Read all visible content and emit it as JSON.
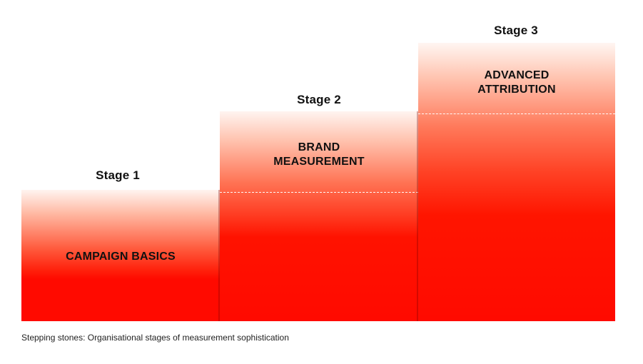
{
  "stages": [
    {
      "label": "Stage 1",
      "title_lines": [
        "CAMPAIGN BASICS"
      ]
    },
    {
      "label": "Stage 2",
      "title_lines": [
        "BRAND",
        "MEASUREMENT"
      ]
    },
    {
      "label": "Stage 3",
      "title_lines": [
        "ADVANCED",
        "ATTRIBUTION"
      ]
    }
  ],
  "caption": "Stepping stones: Organisational stages of measurement sophistication",
  "colors": {
    "step_red": "#ff0a00",
    "step_fade": "#ffffff",
    "text": "#111111",
    "dash": "#ffffff"
  }
}
